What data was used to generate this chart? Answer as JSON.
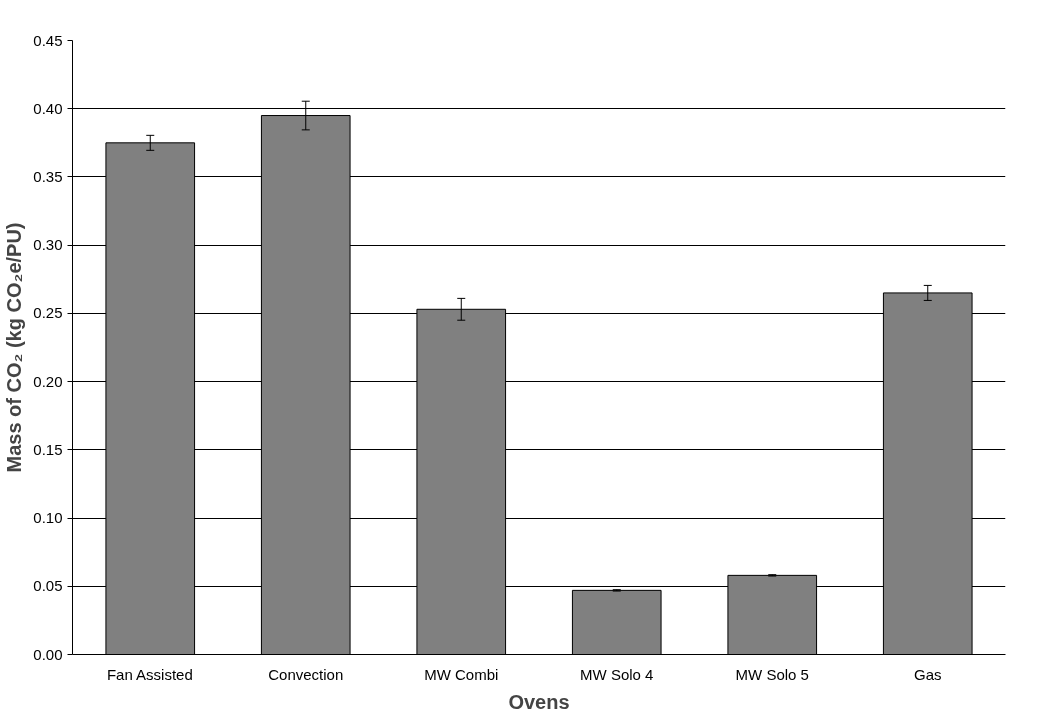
{
  "chart_data": {
    "type": "bar",
    "xlabel": "Ovens",
    "ylabel": "Mass of CO₂ (kg CO₂e/PU)",
    "categories": [
      "Fan Assisted",
      "Convection",
      "MW Combi",
      "MW Solo 4",
      "MW Solo 5",
      "Gas"
    ],
    "values": [
      0.375,
      0.395,
      0.253,
      0.047,
      0.058,
      0.265
    ],
    "errors": [
      0.0055,
      0.0105,
      0.008,
      0.0005,
      0.0005,
      0.0055
    ],
    "color": "#808080",
    "ylim": [
      0,
      0.45
    ],
    "yticks": [
      {
        "value": 0,
        "label": "0.00"
      },
      {
        "value": 0.05,
        "label": "0.05"
      },
      {
        "value": 0.1,
        "label": "0.10"
      },
      {
        "value": 0.15,
        "label": "0.15"
      },
      {
        "value": 0.2,
        "label": "0.20"
      },
      {
        "value": 0.25,
        "label": "0.25"
      },
      {
        "value": 0.3,
        "label": "0.30"
      },
      {
        "value": 0.35,
        "label": "0.35"
      },
      {
        "value": 0.4,
        "label": "0.40"
      },
      {
        "value": 0.45,
        "label": "0.45"
      }
    ],
    "grid": "y"
  }
}
